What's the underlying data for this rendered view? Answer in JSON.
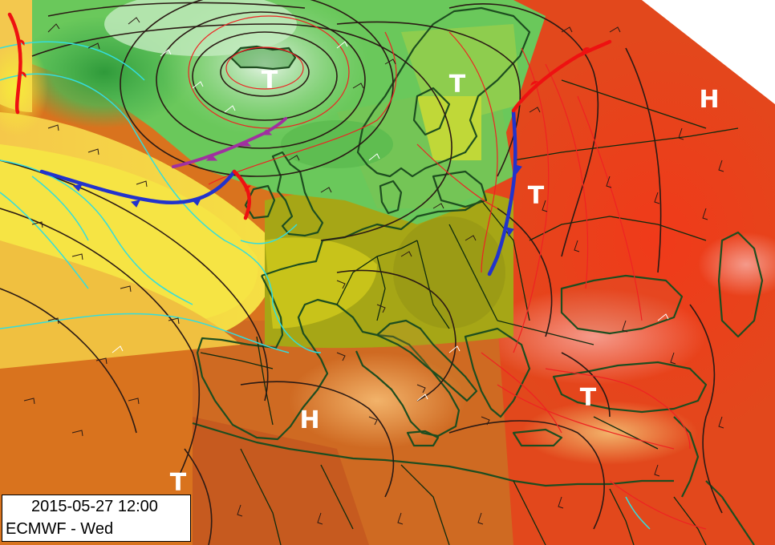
{
  "map": {
    "timestamp": "2015-05-27 12:00",
    "model_run": "ECMWF - Wed",
    "colors": {
      "cold_front": "#2233cc",
      "warm_front": "#ee1111",
      "occluded_front": "#a030a0",
      "isobar": "#2a1a14",
      "coastline": "#1d4d1f",
      "warm_isotherm": "#ee2222",
      "cool_isotherm": "#33dddd",
      "outside_domain": "#ffffff"
    },
    "pressure_centers": [
      {
        "label": "T",
        "type": "low"
      },
      {
        "label": "T",
        "type": "low"
      },
      {
        "label": "T",
        "type": "low"
      },
      {
        "label": "T",
        "type": "low"
      },
      {
        "label": "T",
        "type": "low"
      },
      {
        "label": "H",
        "type": "high"
      },
      {
        "label": "H",
        "type": "high"
      }
    ]
  }
}
